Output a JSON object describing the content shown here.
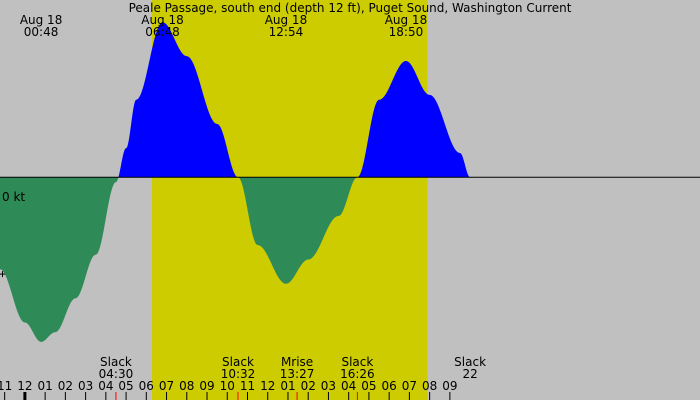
{
  "chart_data": {
    "type": "area",
    "title": "Peale Passage, south end (depth 12 ft), Puget Sound, Washington Current",
    "colors": {
      "night": "#c0c0c0",
      "day": "#cccc00",
      "flood": "#0000ff",
      "ebb": "#2e8b57",
      "axis": "#000000",
      "tick_red": "#ff0000"
    },
    "x_range_hours": [
      -1.23,
      33.36
    ],
    "y_range_kt": [
      -2.3,
      1.83
    ],
    "zero_label": "0 kt",
    "daylight_hours": [
      [
        6.28,
        19.9
      ]
    ],
    "peaks": [
      {
        "date": "Aug 18",
        "time": "00:48",
        "hour": 0.8,
        "kt": -1.7
      },
      {
        "date": "Aug 18",
        "time": "06:48",
        "hour": 6.8,
        "kt": 1.6
      },
      {
        "date": "Aug 18",
        "time": "12:54",
        "hour": 12.9,
        "kt": -1.1
      },
      {
        "date": "Aug 18",
        "time": "18:50",
        "hour": 18.83,
        "kt": 1.2
      }
    ],
    "current_curve": {
      "hour": [
        -1.23,
        0.0,
        0.8,
        1.5,
        2.5,
        3.5,
        4.5,
        5.0,
        5.5,
        6.8,
        8.0,
        9.5,
        10.53,
        11.5,
        12.9,
        14.0,
        15.5,
        16.43,
        17.5,
        18.83,
        20.0,
        21.5,
        22.0
      ],
      "kt": [
        -0.95,
        -1.5,
        -1.7,
        -1.6,
        -1.25,
        -0.8,
        -0.05,
        0.3,
        0.8,
        1.6,
        1.25,
        0.55,
        0.0,
        -0.7,
        -1.1,
        -0.85,
        -0.4,
        0.0,
        0.8,
        1.2,
        0.85,
        0.25,
        0.0
      ]
    },
    "events": [
      {
        "name": "Slack",
        "time": "04:30",
        "hour": 4.5
      },
      {
        "name": "Slack",
        "time": "10:32",
        "hour": 10.53
      },
      {
        "name": "Mrise",
        "time": "13:27",
        "hour": 13.45
      },
      {
        "name": "Slack",
        "time": "16:26",
        "hour": 16.43
      },
      {
        "name": "Slack",
        "time": "22",
        "hour": 22.0
      }
    ],
    "hour_ticks": [
      {
        "label": "11",
        "hour": -1.0
      },
      {
        "label": "12",
        "hour": 0.0
      },
      {
        "label": "01",
        "hour": 1.0
      },
      {
        "label": "02",
        "hour": 2.0
      },
      {
        "label": "03",
        "hour": 3.0
      },
      {
        "label": "04",
        "hour": 4.0
      },
      {
        "label": "05",
        "hour": 5.0
      },
      {
        "label": "06",
        "hour": 6.0
      },
      {
        "label": "07",
        "hour": 7.0
      },
      {
        "label": "08",
        "hour": 8.0
      },
      {
        "label": "09",
        "hour": 9.0
      },
      {
        "label": "10",
        "hour": 10.0
      },
      {
        "label": "11",
        "hour": 11.0
      },
      {
        "label": "12",
        "hour": 12.0
      },
      {
        "label": "01",
        "hour": 13.0
      },
      {
        "label": "02",
        "hour": 14.0
      },
      {
        "label": "03",
        "hour": 15.0
      },
      {
        "label": "04",
        "hour": 16.0
      },
      {
        "label": "05",
        "hour": 17.0
      },
      {
        "label": "06",
        "hour": 18.0
      },
      {
        "label": "07",
        "hour": 19.0
      },
      {
        "label": "08",
        "hour": 20.0
      },
      {
        "label": "09",
        "hour": 21.0
      }
    ],
    "red_ticks_hours": [
      4.5,
      10.53,
      13.45,
      16.43
    ],
    "midnight_tick_hour": 0.0
  }
}
